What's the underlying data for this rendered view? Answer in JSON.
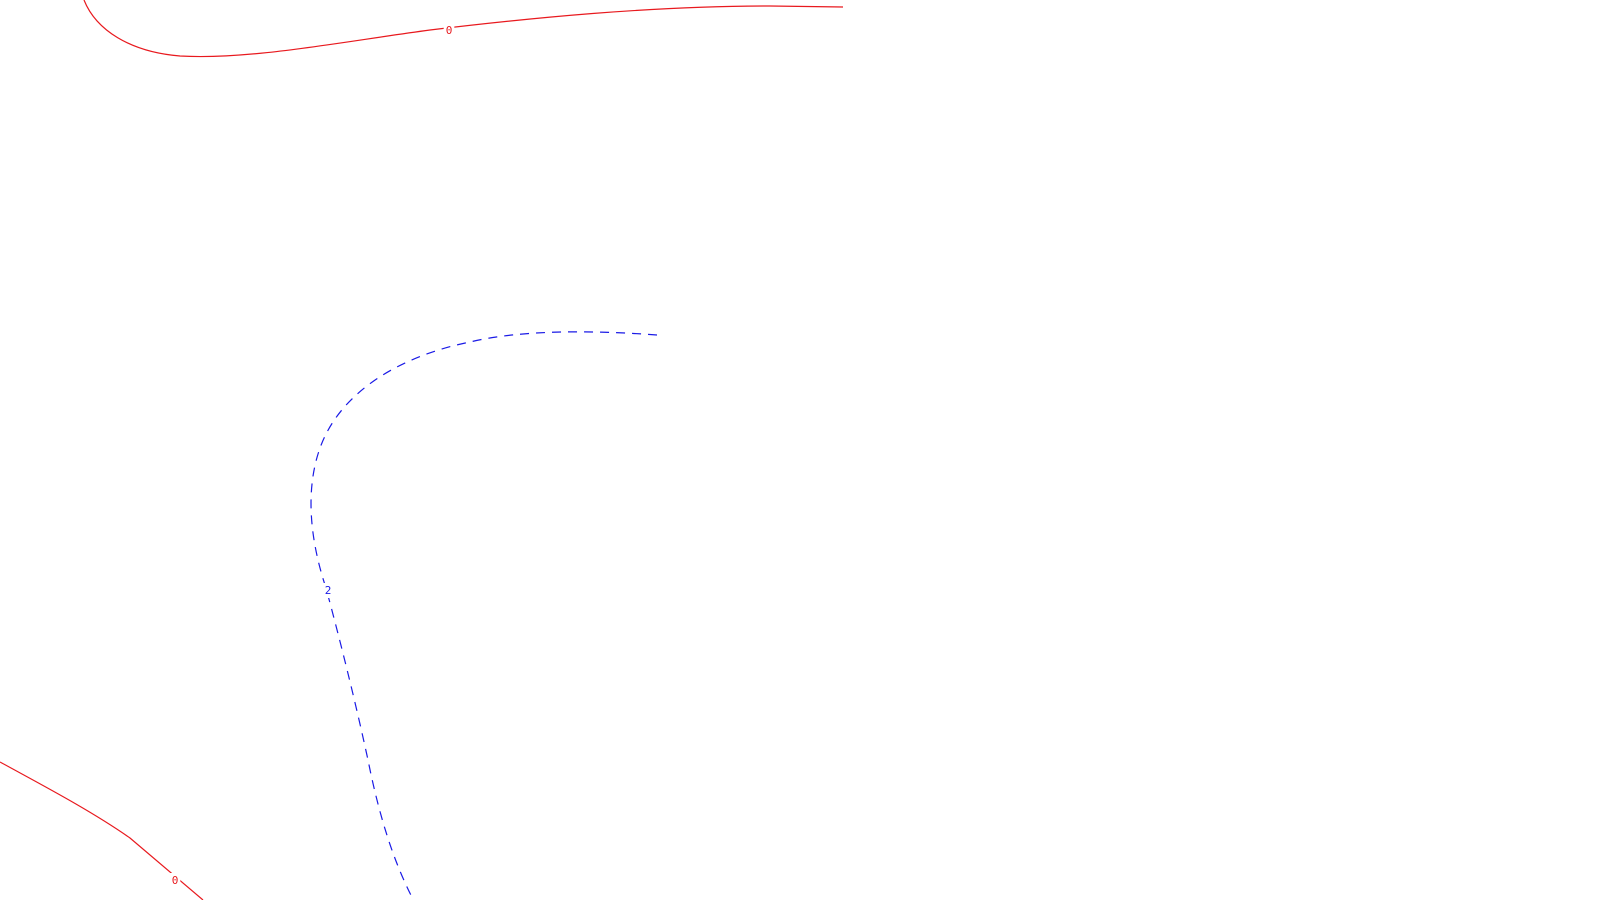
{
  "chart_data": {
    "type": "contour",
    "title": "",
    "xlabel": "",
    "ylabel": "",
    "grid": false,
    "legend": "none",
    "contours": [
      {
        "level": 0,
        "label": "0",
        "color": "#e8191e",
        "style": "solid",
        "segments": 2
      },
      {
        "level": 2,
        "label": "2",
        "color": "#1a1ae6",
        "style": "dashed",
        "segments": 1
      }
    ]
  }
}
